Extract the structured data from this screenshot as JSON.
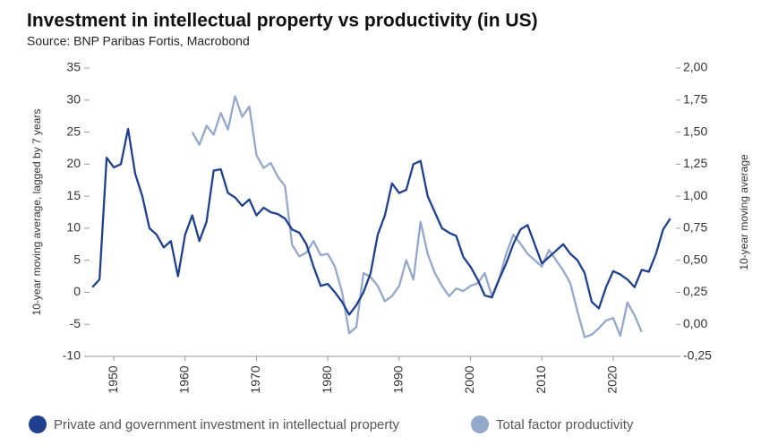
{
  "chart_data": {
    "type": "line",
    "title": "Investment in intellectual property vs productivity (in US)",
    "subtitle": "Source: BNP Paribas Fortis, Macrobond",
    "y_label": "10-year moving average, lagged by 7 years",
    "y2_label": "10-year moving average",
    "x": [
      1947,
      1948,
      1949,
      1950,
      1951,
      1952,
      1953,
      1954,
      1955,
      1956,
      1957,
      1958,
      1959,
      1960,
      1961,
      1962,
      1963,
      1964,
      1965,
      1966,
      1967,
      1968,
      1969,
      1970,
      1971,
      1972,
      1973,
      1974,
      1975,
      1976,
      1977,
      1978,
      1979,
      1980,
      1981,
      1982,
      1983,
      1984,
      1985,
      1986,
      1987,
      1988,
      1989,
      1990,
      1991,
      1992,
      1993,
      1994,
      1995,
      1996,
      1997,
      1998,
      1999,
      2000,
      2001,
      2002,
      2003,
      2004,
      2005,
      2006,
      2007,
      2008,
      2009,
      2010,
      2011,
      2012,
      2013,
      2014,
      2015,
      2016,
      2017,
      2018,
      2019,
      2020,
      2021,
      2022,
      2023,
      2024,
      2025,
      2026,
      2027,
      2028
    ],
    "xlim": [
      1946.6,
      2028.8
    ],
    "xticks": [
      1950,
      1960,
      1970,
      1980,
      1990,
      2000,
      2010,
      2020
    ],
    "ylim": [
      -10,
      35
    ],
    "yticks": [
      -10,
      -5,
      0,
      5,
      10,
      15,
      20,
      25,
      30,
      35
    ],
    "y2lim": [
      -0.25,
      2.0
    ],
    "y2ticks": [
      {
        "value": -0.25,
        "label": "-0,25"
      },
      {
        "value": 0,
        "label": "0,00"
      },
      {
        "value": 0.25,
        "label": "0,25"
      },
      {
        "value": 0.5,
        "label": "0,50"
      },
      {
        "value": 0.75,
        "label": "0,75"
      },
      {
        "value": 1.0,
        "label": "1,00"
      },
      {
        "value": 1.25,
        "label": "1,25"
      },
      {
        "value": 1.5,
        "label": "1,50"
      },
      {
        "value": 1.75,
        "label": "1,75"
      },
      {
        "value": 2.0,
        "label": "2,00"
      }
    ],
    "legend": "bottom",
    "series": [
      {
        "name": "Private and government investment in intellectual property",
        "color": "#1f3f8f",
        "axis": "y",
        "values": [
          0.8,
          2,
          21,
          19.5,
          20,
          25.5,
          18.5,
          15,
          10,
          9,
          7,
          8,
          2.5,
          9,
          12,
          8,
          11,
          19,
          19.2,
          15.5,
          14.8,
          13.5,
          14.5,
          12,
          13.2,
          12.5,
          12.2,
          11.5,
          9.8,
          9.3,
          7.5,
          4,
          1,
          1.3,
          0,
          -1.5,
          -3.5,
          -2,
          0,
          3,
          9,
          12,
          17,
          15.5,
          16,
          20,
          20.5,
          15,
          12.5,
          10,
          9.3,
          8.8,
          5.5,
          4,
          2,
          -0.5,
          -0.8,
          2,
          4.5,
          7.5,
          9.8,
          10.5,
          7.5,
          4.5,
          5.5,
          6.5,
          7.5,
          6,
          5,
          3,
          -1.5,
          -2.5,
          0.8,
          3.3,
          2.8,
          2,
          0.8,
          3.5,
          3.2,
          6,
          9.8,
          11.5
        ]
      },
      {
        "name": "Total factor productivity",
        "color": "#94a8cc",
        "axis": "y2",
        "values": [
          null,
          null,
          null,
          null,
          null,
          null,
          null,
          null,
          null,
          null,
          null,
          null,
          null,
          null,
          1.5,
          1.4,
          1.55,
          1.48,
          1.65,
          1.52,
          1.78,
          1.62,
          1.7,
          1.32,
          1.22,
          1.26,
          1.15,
          1.08,
          0.62,
          0.53,
          0.56,
          0.65,
          0.54,
          0.55,
          0.45,
          0.25,
          -0.07,
          -0.02,
          0.4,
          0.37,
          0.3,
          0.18,
          0.22,
          0.3,
          0.5,
          0.35,
          0.8,
          0.55,
          0.4,
          0.3,
          0.22,
          0.28,
          0.26,
          0.3,
          0.32,
          0.4,
          0.22,
          0.35,
          0.55,
          0.7,
          0.63,
          0.55,
          0.5,
          0.45,
          0.58,
          0.5,
          0.42,
          0.32,
          0.1,
          -0.1,
          -0.08,
          -0.03,
          0.03,
          0.05,
          -0.09,
          0.17,
          0.07,
          -0.06,
          null,
          null,
          null,
          null
        ]
      }
    ]
  }
}
